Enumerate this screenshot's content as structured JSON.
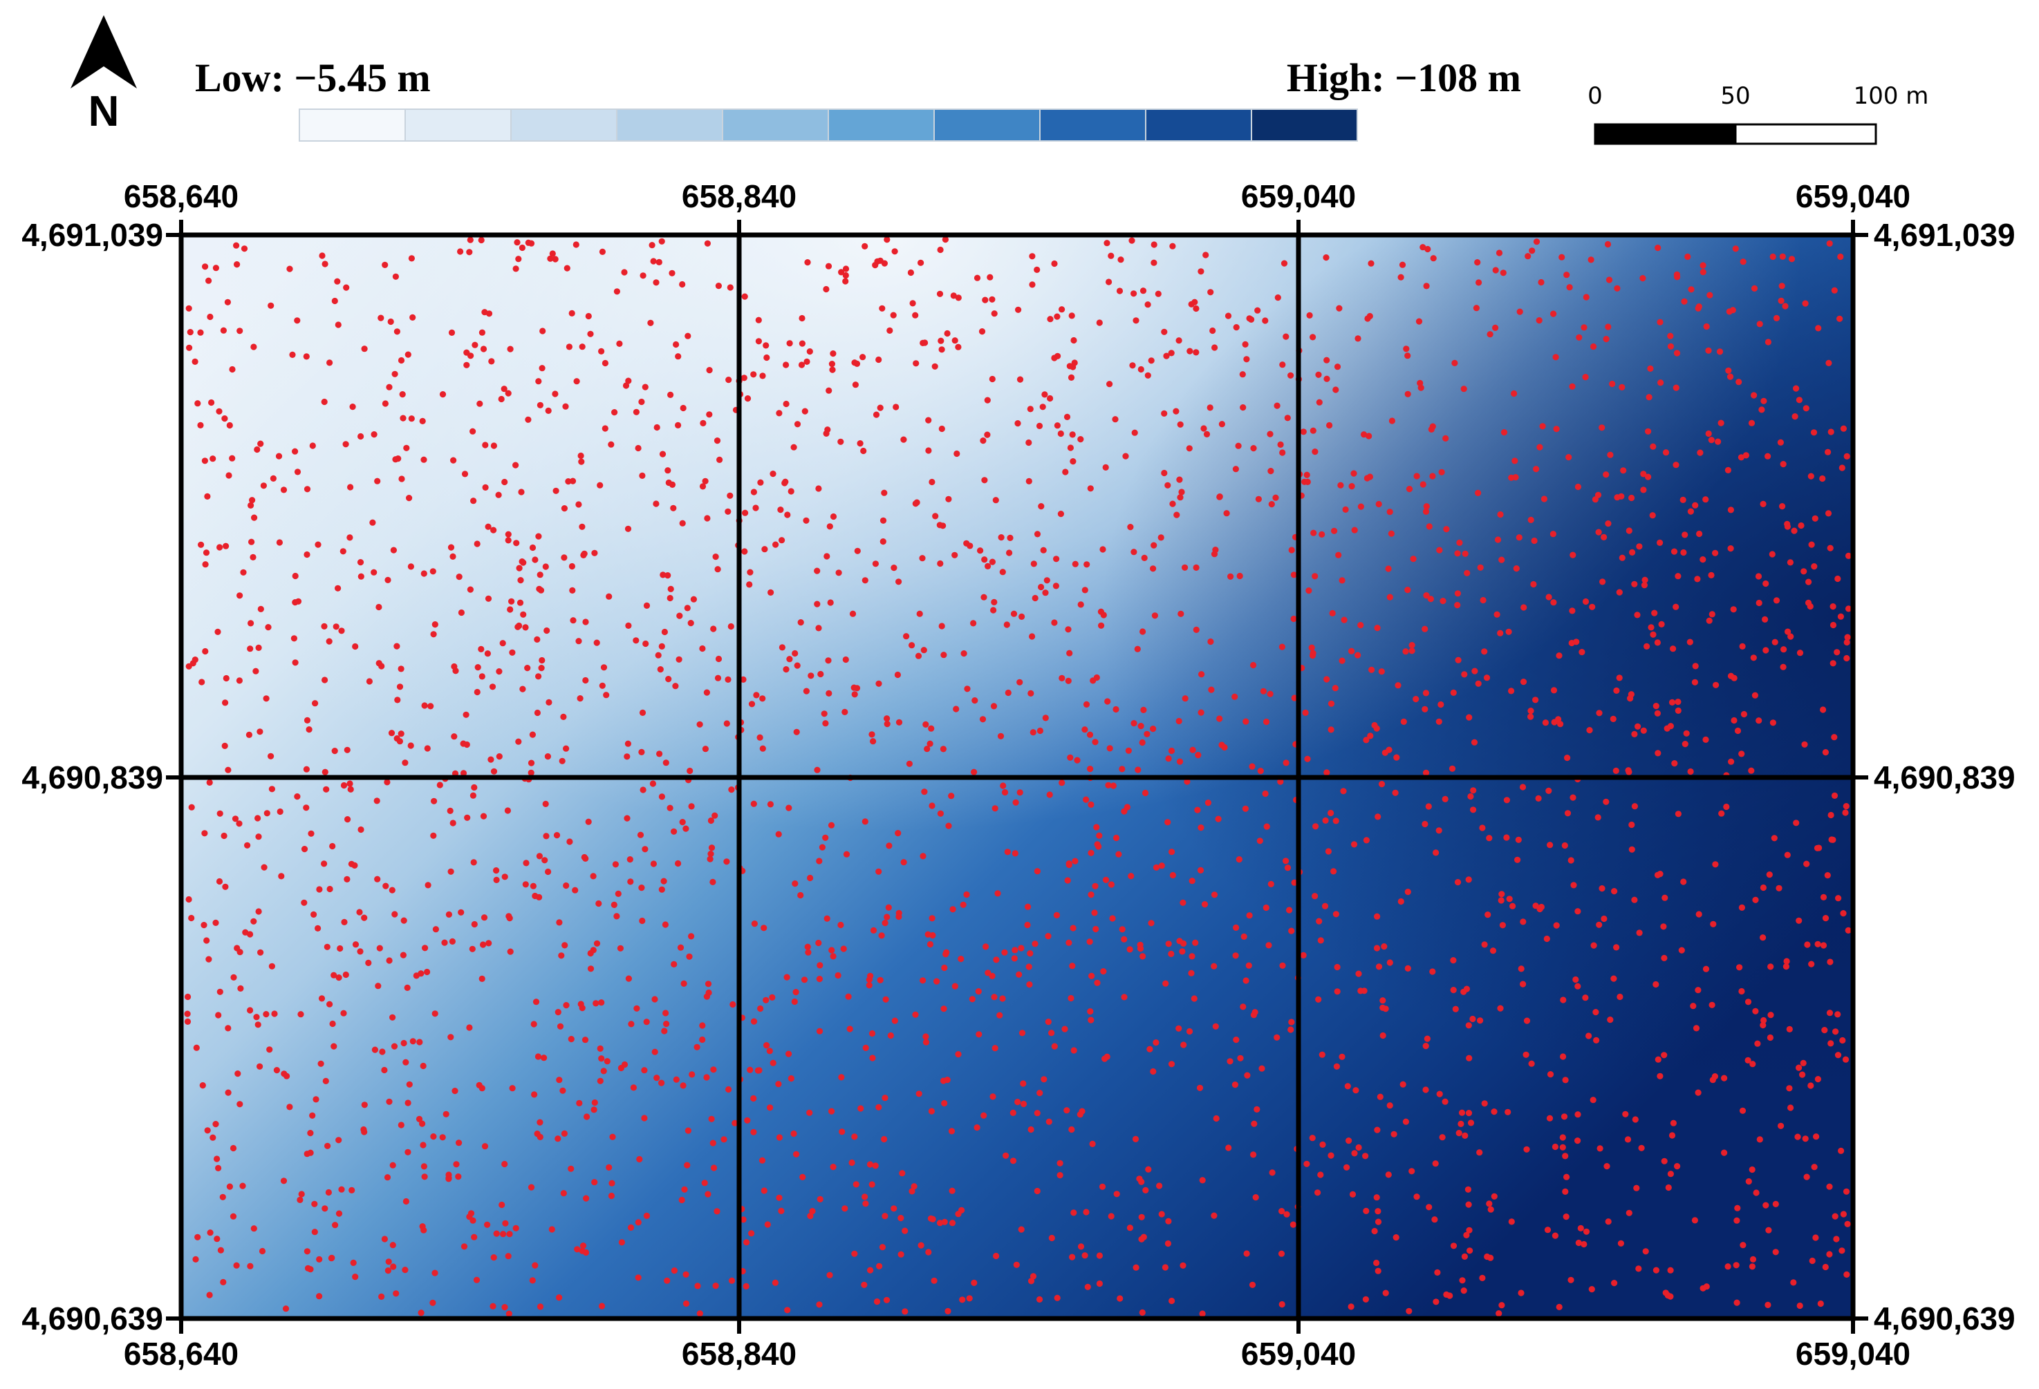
{
  "legend": {
    "low_label": "Low: −5.45 m",
    "high_label": "High: −108 m",
    "ramp_colors": [
      "#f4f8fc",
      "#e1ecf6",
      "#cbdeef",
      "#b3d0e8",
      "#8fbde0",
      "#64a5d6",
      "#3f85c5",
      "#2566b0",
      "#154b95",
      "#0a2f6b"
    ]
  },
  "north_arrow": {
    "label": "N"
  },
  "scale_bar": {
    "ticks": [
      "0",
      "50",
      "100 m"
    ]
  },
  "grid": {
    "x_labels": [
      "658,640",
      "658,840",
      "659,040",
      "659,040"
    ],
    "y_labels": [
      "4,691,039",
      "4,690,839",
      "4,690,639"
    ]
  },
  "colors": {
    "point": "#e8202a",
    "frame": "#000000",
    "shallow": "#f0f5fb",
    "deep": "#08256a"
  },
  "sample_points": {
    "count": 2500,
    "icon": "red-dot"
  }
}
